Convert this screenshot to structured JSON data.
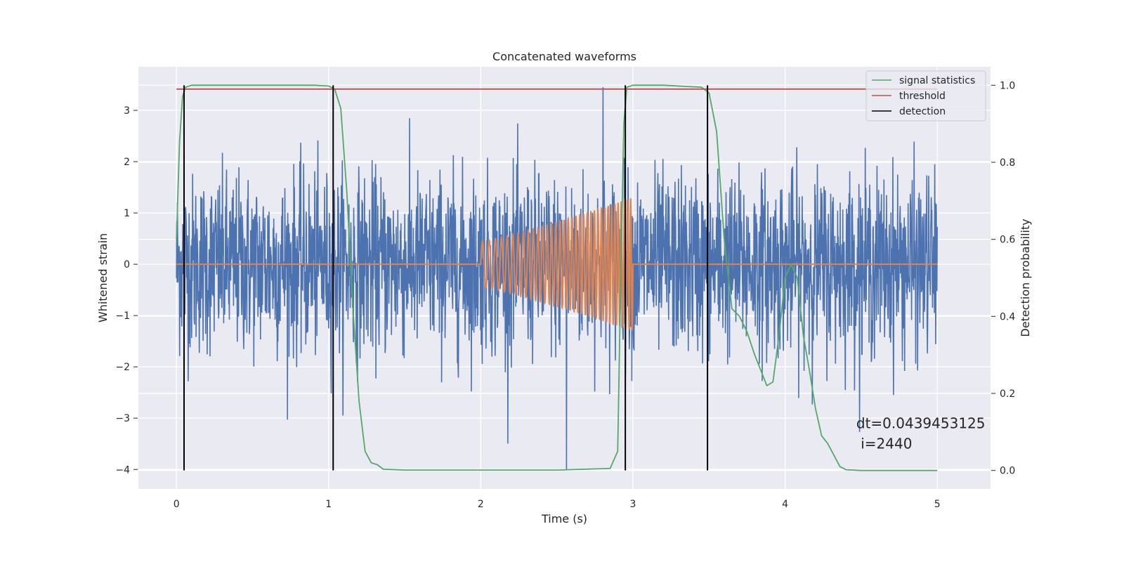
{
  "chart_data": {
    "type": "line",
    "title": "Concatenated waveforms",
    "xlabel": "Time (s)",
    "ylabel": "Whitened strain",
    "y2label": "Detection probability",
    "xlim": [
      -0.25,
      5.35
    ],
    "ylim": [
      -4.38,
      3.85
    ],
    "y2lim": [
      -0.048,
      1.048
    ],
    "xticks": [
      0,
      1,
      2,
      3,
      4,
      5
    ],
    "yticks": [
      -4,
      -3,
      -2,
      -1,
      0,
      1,
      2,
      3
    ],
    "y2ticks": [
      0.0,
      0.2,
      0.4,
      0.6,
      0.8,
      1.0
    ],
    "grid": true,
    "legend_position": "top-right",
    "colors": {
      "noise": "#4c72b0",
      "injection": "#dd8452",
      "signal_statistics": "#55a868",
      "threshold": "#c44e52",
      "detection": "#000000",
      "axes_bg": "#eaeaf2",
      "grid": "#ffffff"
    },
    "series": [
      {
        "name": "signal statistics",
        "axis": "right",
        "x": [
          0.0,
          0.02,
          0.04,
          0.06,
          0.1,
          0.2,
          0.5,
          0.9,
          1.0,
          1.04,
          1.08,
          1.12,
          1.16,
          1.2,
          1.24,
          1.28,
          1.32,
          1.36,
          1.5,
          2.0,
          2.5,
          2.75,
          2.85,
          2.9,
          2.92,
          2.94,
          2.96,
          3.0,
          3.2,
          3.45,
          3.5,
          3.55,
          3.6,
          3.65,
          3.7,
          3.75,
          3.8,
          3.85,
          3.88,
          3.92,
          3.96,
          4.0,
          4.04,
          4.08,
          4.12,
          4.16,
          4.2,
          4.24,
          4.28,
          4.32,
          4.36,
          4.4,
          4.5,
          5.0
        ],
        "y": [
          0.6,
          0.85,
          0.97,
          0.995,
          1.0,
          1.0,
          1.0,
          1.0,
          0.998,
          0.99,
          0.94,
          0.72,
          0.42,
          0.18,
          0.05,
          0.02,
          0.015,
          0.003,
          0.001,
          0.001,
          0.001,
          0.004,
          0.005,
          0.05,
          0.5,
          0.9,
          0.995,
          1.0,
          1.0,
          0.995,
          0.98,
          0.88,
          0.6,
          0.42,
          0.4,
          0.36,
          0.3,
          0.25,
          0.22,
          0.23,
          0.35,
          0.5,
          0.535,
          0.5,
          0.35,
          0.26,
          0.16,
          0.09,
          0.07,
          0.04,
          0.01,
          0.002,
          0.0,
          0.0
        ]
      },
      {
        "name": "threshold",
        "axis": "right",
        "x": [
          0.0,
          5.0
        ],
        "y": [
          0.99,
          0.99
        ]
      },
      {
        "name": "detection",
        "axis": "right",
        "x": [
          0.05,
          1.03,
          2.95,
          3.49
        ],
        "y_range": [
          0.0,
          1.0
        ]
      }
    ],
    "noise": {
      "axis": "left",
      "x_range": [
        0.0,
        5.0
      ],
      "typical_abs_max": 2.0,
      "max": 3.45,
      "min": -4.0
    },
    "injection": {
      "axis": "left",
      "x_range": [
        0.0,
        5.0
      ],
      "chirp_start": 2.0,
      "chirp_end": 3.0,
      "start_amplitude": 0.45,
      "end_amplitude": 1.3
    },
    "annotations": [
      {
        "text": "dt=0.0439453125",
        "x": 4.5,
        "y": -3.1
      },
      {
        "text": " i=2440",
        "x": 4.5,
        "y": -3.5
      }
    ]
  }
}
